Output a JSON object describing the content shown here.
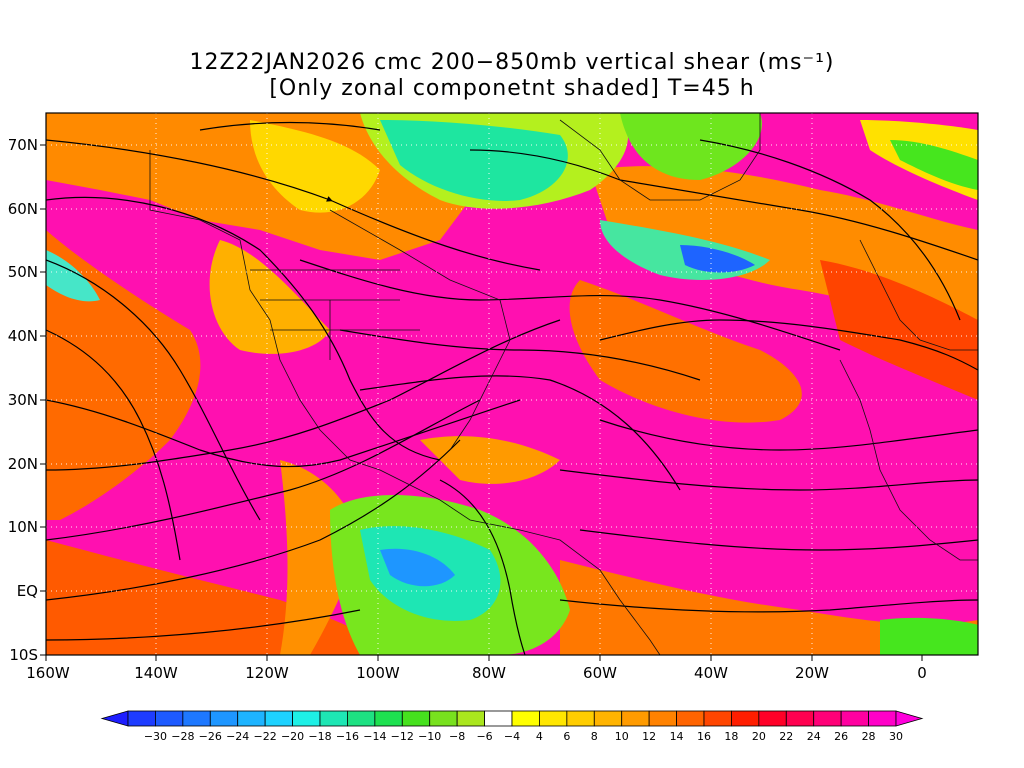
{
  "title_line1": "12Z22JAN2026 cmc 200−850mb vertical shear (ms⁻¹)",
  "title_line2": "[Only zonal componetnt shaded] T=45 h",
  "lat_labels": [
    "70N",
    "60N",
    "50N",
    "40N",
    "30N",
    "20N",
    "10N",
    "EQ",
    "10S"
  ],
  "lon_labels": [
    "160W",
    "140W",
    "120W",
    "100W",
    "80W",
    "60W",
    "40W",
    "20W",
    "0"
  ],
  "colorbar": {
    "labels": [
      "−30",
      "−28",
      "−26",
      "−24",
      "−22",
      "−20",
      "−18",
      "−16",
      "−14",
      "−12",
      "−10",
      "−8",
      "−6",
      "−4",
      "4",
      "6",
      "8",
      "10",
      "12",
      "14",
      "16",
      "18",
      "20",
      "22",
      "24",
      "26",
      "28",
      "30"
    ],
    "colors": [
      "#1e3cff",
      "#1e5aff",
      "#1e78ff",
      "#1e96ff",
      "#1eb4ff",
      "#1ed2ff",
      "#1ef0e6",
      "#1ee6b4",
      "#1ee182",
      "#1ee150",
      "#46e11e",
      "#78e11e",
      "#aae61e",
      "#ffffff",
      "#ffff00",
      "#ffe600",
      "#ffcd00",
      "#ffb400",
      "#ff9b00",
      "#ff8200",
      "#ff6400",
      "#ff4600",
      "#ff1e00",
      "#ff0028",
      "#ff0050",
      "#ff0078",
      "#ff00a0",
      "#ff00c8"
    ],
    "underflow_color": "#1e1eff",
    "overflow_color": "#ff00dc"
  }
}
